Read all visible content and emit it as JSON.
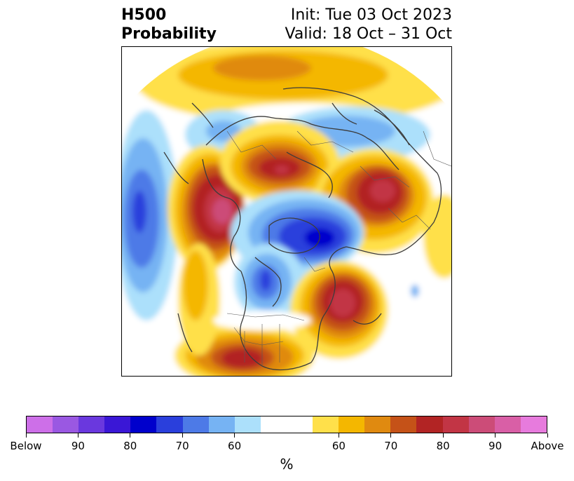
{
  "title": {
    "left_line1": "H500",
    "left_line2": "Probability",
    "right_line1": "Init: Tue 03 Oct 2023",
    "right_line2": "Valid: 18 Oct – 31 Oct"
  },
  "map": {
    "projection": "north-polar-stereographic",
    "features": [
      "coastlines",
      "country-borders",
      "us-state-borders"
    ],
    "below_color_scale": [
      "#ace0fb",
      "#76b3f3",
      "#4d7ae7",
      "#2a3fdc",
      "#0000cc",
      "#3a17d6",
      "#6a38de",
      "#9a58e2",
      "#cd6fe8"
    ],
    "above_color_scale": [
      "#ffe04a",
      "#f4b700",
      "#e08a10",
      "#c55218",
      "#b22424",
      "#c23545",
      "#cc4c78",
      "#d95fa6",
      "#e77bdd"
    ]
  },
  "colorbar": {
    "colors": [
      "#cd6fe8",
      "#9a58e2",
      "#6a38de",
      "#3a17d6",
      "#0000cc",
      "#2a3fdc",
      "#4d7ae7",
      "#76b3f3",
      "#ace0fb",
      "#ffffff",
      "#ffffff",
      "#ffe04a",
      "#f4b700",
      "#e08a10",
      "#c55218",
      "#b22424",
      "#c23545",
      "#cc4c78",
      "#d95fa6",
      "#e77bdd"
    ],
    "tick_labels": [
      "Below",
      "90",
      "80",
      "70",
      "60",
      "60",
      "70",
      "80",
      "90",
      "Above"
    ],
    "unit": "%"
  }
}
